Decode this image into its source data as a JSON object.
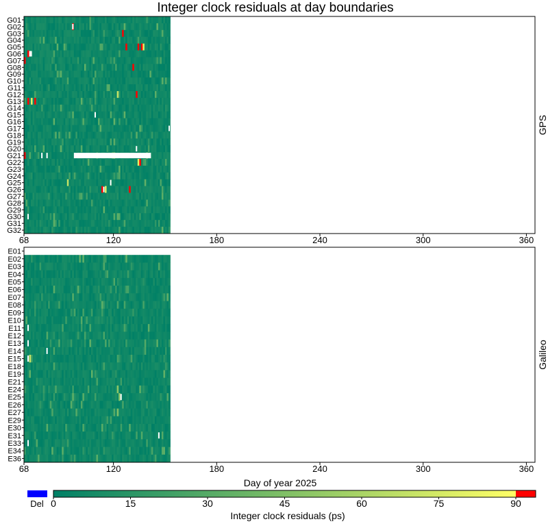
{
  "chart_data": {
    "type": "heatmap",
    "title": "Integer clock residuals at day boundaries",
    "xlabel": "Day of year 2025",
    "xlim": [
      68,
      365
    ],
    "xticks": [
      68,
      120,
      180,
      240,
      300,
      360
    ],
    "data_xrange": [
      68,
      153
    ],
    "panels": [
      {
        "name": "GPS",
        "rows": [
          "G01",
          "G02",
          "G03",
          "G04",
          "G05",
          "G06",
          "G07",
          "G08",
          "G09",
          "G10",
          "G11",
          "G12",
          "G13",
          "G14",
          "G15",
          "G16",
          "G17",
          "G18",
          "G19",
          "G20",
          "G21",
          "G22",
          "G23",
          "G24",
          "G25",
          "G26",
          "G27",
          "G28",
          "G29",
          "G30",
          "G31",
          "G32"
        ],
        "outliers": [
          {
            "row": "G02",
            "day": 96,
            "value": 95
          },
          {
            "row": "G03",
            "day": 125,
            "value": 95
          },
          {
            "row": "G05",
            "day": 127,
            "value": 95
          },
          {
            "row": "G05",
            "day": 134,
            "value": 95
          },
          {
            "row": "G05",
            "day": 136,
            "value": 95
          },
          {
            "row": "G06",
            "day": 70,
            "value": 95
          },
          {
            "row": "G07",
            "day": 68,
            "value": 95
          },
          {
            "row": "G08",
            "day": 131,
            "value": 95
          },
          {
            "row": "G12",
            "day": 133,
            "value": 95
          },
          {
            "row": "G13",
            "day": 70,
            "value": 95
          },
          {
            "row": "G13",
            "day": 74,
            "value": 95
          },
          {
            "row": "G21",
            "day": 68,
            "value": 95
          },
          {
            "row": "G22",
            "day": 135,
            "value": 95
          },
          {
            "row": "G26",
            "day": 113,
            "value": 95
          },
          {
            "row": "G26",
            "day": 129,
            "value": 95
          }
        ],
        "high_values": [
          {
            "row": "G05",
            "day": 137,
            "value": 80
          },
          {
            "row": "G12",
            "day": 122,
            "value": 70
          },
          {
            "row": "G13",
            "day": 72,
            "value": 80
          },
          {
            "row": "G22",
            "day": 134,
            "value": 80
          },
          {
            "row": "G25",
            "day": 93,
            "value": 70
          },
          {
            "row": "G26",
            "day": 115,
            "value": 80
          }
        ],
        "gaps": [
          {
            "row": "G02",
            "day_start": 96,
            "day_end": 97
          },
          {
            "row": "G06",
            "day_start": 71,
            "day_end": 73
          },
          {
            "row": "G15",
            "day_start": 109,
            "day_end": 110
          },
          {
            "row": "G17",
            "day_start": 152,
            "day_end": 153
          },
          {
            "row": "G20",
            "day_start": 133,
            "day_end": 134
          },
          {
            "row": "G21",
            "day_start": 78,
            "day_end": 79
          },
          {
            "row": "G21",
            "day_start": 81,
            "day_end": 82
          },
          {
            "row": "G21",
            "day_start": 97,
            "day_end": 153
          },
          {
            "row": "G25",
            "day_start": 118,
            "day_end": 119
          },
          {
            "row": "G26",
            "day_start": 114,
            "day_end": 115
          },
          {
            "row": "G30",
            "day_start": 70,
            "day_end": 71
          }
        ]
      },
      {
        "name": "Galileo",
        "rows": [
          "E01",
          "E02",
          "E03",
          "E04",
          "E05",
          "E06",
          "E07",
          "E08",
          "E09",
          "E10",
          "E11",
          "E12",
          "E13",
          "E14",
          "E15",
          "E18",
          "E19",
          "E21",
          "E24",
          "E25",
          "E26",
          "E27",
          "E29",
          "E30",
          "E31",
          "E33",
          "E34",
          "E36"
        ],
        "empty_rows": [
          "E01"
        ],
        "outliers": [],
        "high_values": [
          {
            "row": "E15",
            "day": 71,
            "value": 70
          },
          {
            "row": "E24",
            "day": 122,
            "value": 50
          },
          {
            "row": "E25",
            "day": 123,
            "value": 50
          },
          {
            "row": "E27",
            "day": 122,
            "value": 45
          }
        ],
        "gaps": [
          {
            "row": "E11",
            "day_start": 70,
            "day_end": 71
          },
          {
            "row": "E13",
            "day_start": 70,
            "day_end": 71
          },
          {
            "row": "E14",
            "day_start": 81,
            "day_end": 82
          },
          {
            "row": "E15",
            "day_start": 70,
            "day_end": 71
          },
          {
            "row": "E25",
            "day_start": 124,
            "day_end": 125
          },
          {
            "row": "E31",
            "day_start": 146,
            "day_end": 147
          },
          {
            "row": "E33",
            "day_start": 70,
            "day_end": 71
          }
        ]
      }
    ],
    "colorbar": {
      "label": "Integer clock residuals (ps)",
      "ticks": [
        0,
        15,
        30,
        45,
        60,
        75,
        90
      ],
      "range": [
        0,
        90
      ],
      "colormap": "summer (green to yellow)",
      "deleted_label": "Del",
      "deleted_color": "#0000ff",
      "over_color": "#ff0000",
      "low_color": "#008066",
      "high_color": "#ffff66"
    }
  }
}
